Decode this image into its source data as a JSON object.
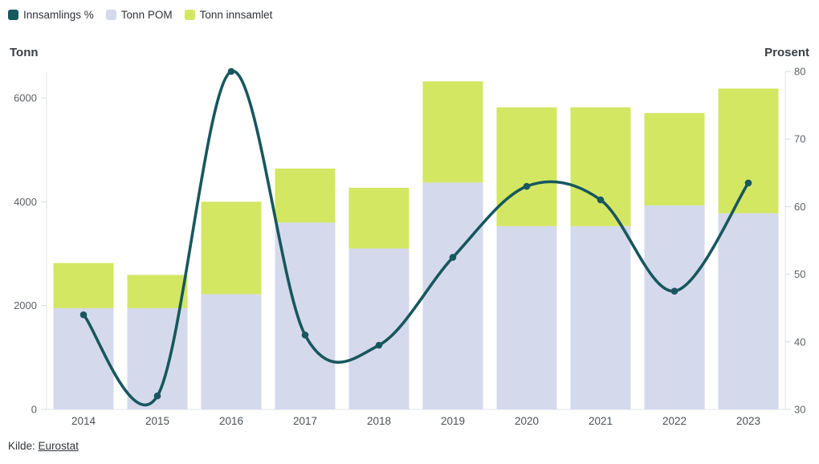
{
  "legend": {
    "items": [
      {
        "label": "Innsamlings %",
        "color": "#17575e"
      },
      {
        "label": "Tonn POM",
        "color": "#d5d9ec"
      },
      {
        "label": "Tonn innsamlet",
        "color": "#d3e763"
      }
    ]
  },
  "axes": {
    "left_title": "Tonn",
    "right_title": "Prosent"
  },
  "footer": {
    "source_label": "Kilde:",
    "source_link": "Eurostat"
  },
  "chart_data": {
    "type": "bar",
    "subtype": "stacked-bars-with-line",
    "categories": [
      "2014",
      "2015",
      "2016",
      "2017",
      "2018",
      "2019",
      "2020",
      "2021",
      "2022",
      "2023"
    ],
    "series": [
      {
        "name": "Tonn POM",
        "type": "bar",
        "axis": "left",
        "color": "#d5d9ec",
        "values": [
          1950,
          1950,
          2220,
          3600,
          3100,
          4370,
          3530,
          3530,
          3930,
          3780
        ]
      },
      {
        "name": "Tonn innsamlet",
        "type": "bar",
        "axis": "left",
        "color": "#d3e763",
        "values": [
          870,
          640,
          1780,
          1040,
          1170,
          1950,
          2290,
          2290,
          1780,
          2400
        ]
      },
      {
        "name": "Innsamlings %",
        "type": "line",
        "axis": "right",
        "color": "#17575e",
        "values": [
          44,
          32,
          80,
          41,
          39.5,
          52.5,
          63,
          61,
          47.5,
          63.5
        ]
      }
    ],
    "stacked_totals": [
      2820,
      2590,
      4000,
      4640,
      4270,
      6320,
      5820,
      5820,
      5710,
      6180
    ],
    "left_axis": {
      "title": "Tonn",
      "ticks": [
        0,
        2000,
        4000,
        6000
      ],
      "range": [
        0,
        6500
      ]
    },
    "right_axis": {
      "title": "Prosent",
      "ticks": [
        30,
        40,
        50,
        60,
        70,
        80
      ],
      "range": [
        30,
        80
      ]
    },
    "legend_position": "top-left",
    "grid": "off",
    "source": "Kilde: Eurostat"
  }
}
